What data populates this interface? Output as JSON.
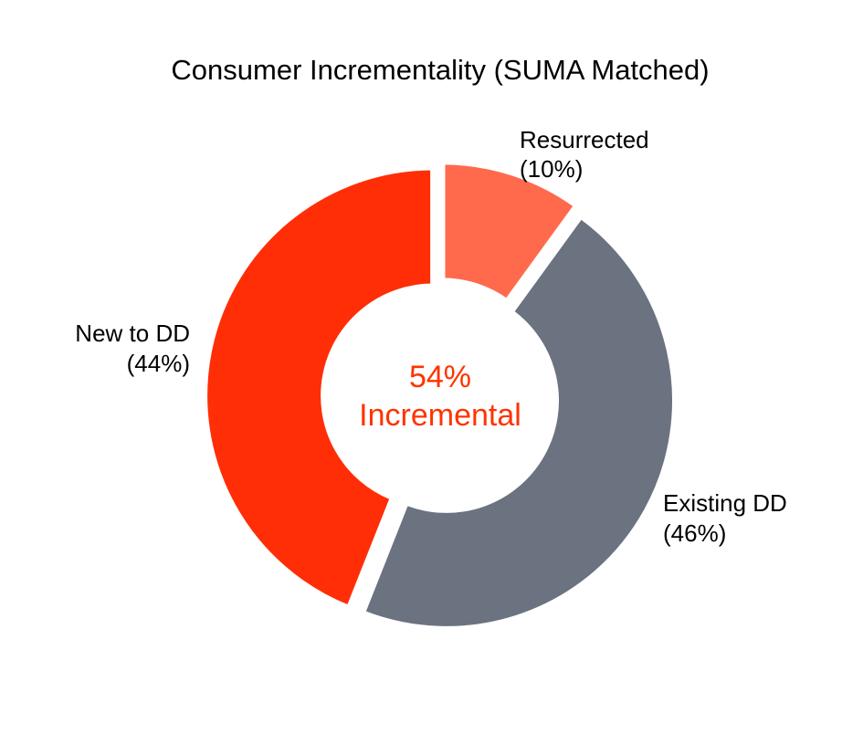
{
  "chart_data": {
    "type": "pie",
    "variant": "donut",
    "title": "Consumer Incrementality (SUMA Matched)",
    "slices": [
      {
        "label": "Resurrected",
        "pct_label": "(10%)",
        "value": 10,
        "color": "#ff6a4d"
      },
      {
        "label": "Existing DD",
        "pct_label": "(46%)",
        "value": 46,
        "color": "#6b7280"
      },
      {
        "label": "New to DD",
        "pct_label": "(44%)",
        "value": 44,
        "color": "#ff2e07"
      }
    ],
    "center": {
      "line1": "54%",
      "line2": "Incremental",
      "color": "#ff3300"
    },
    "legend": "none"
  }
}
